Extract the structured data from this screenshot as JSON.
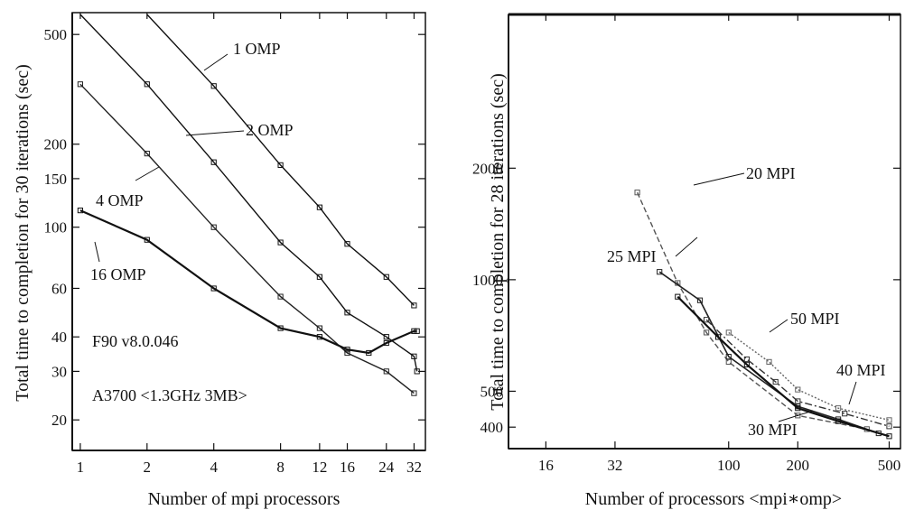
{
  "chart_data": [
    {
      "type": "line",
      "xlabel": "Number of mpi processors",
      "ylabel": "Total time to completion for 30 iterations (sec)",
      "xscale": "log",
      "yscale": "log",
      "xlim": [
        0.92,
        36
      ],
      "ylim": [
        15.5,
        600
      ],
      "x_ticks": [
        1,
        2,
        4,
        8,
        12,
        16,
        24,
        32
      ],
      "y_ticks": [
        20,
        30,
        40,
        60,
        100,
        150,
        200,
        500
      ],
      "grid": false,
      "annotations": [
        "F90 v8.0.046",
        "A3700 <1.3GHz 3MB>"
      ],
      "series": [
        {
          "name": "1 OMP",
          "x": [
            2,
            4,
            8,
            12,
            16,
            24,
            32
          ],
          "y": [
            640,
            325,
            168,
            118,
            87,
            66,
            52
          ]
        },
        {
          "name": "2 OMP",
          "x": [
            1,
            2,
            4,
            8,
            12,
            16,
            24,
            32,
            33
          ],
          "y": [
            640,
            330,
            172,
            88,
            66,
            49,
            40,
            34,
            30
          ]
        },
        {
          "name": "4 OMP",
          "x": [
            1,
            2,
            4,
            8,
            12,
            16,
            24,
            32
          ],
          "y": [
            330,
            185,
            100,
            56,
            43,
            35,
            30,
            25
          ]
        },
        {
          "name": "16 OMP",
          "x": [
            1,
            2,
            4,
            8,
            12,
            16,
            20,
            24,
            32,
            33
          ],
          "y": [
            115,
            90,
            60,
            43,
            40,
            36,
            35,
            38,
            42,
            42
          ]
        }
      ]
    },
    {
      "type": "line",
      "xlabel": "Number of  processors <mpi∗omp>",
      "ylabel": "Total time to completion for 28 iterations (sec)",
      "xscale": "log",
      "yscale": "log",
      "xlim": [
        11,
        560
      ],
      "ylim": [
        350,
        5200
      ],
      "x_ticks": [
        16,
        32,
        100,
        200,
        500
      ],
      "y_ticks": [
        400,
        500,
        1000,
        2000
      ],
      "grid": false,
      "series": [
        {
          "name": "20 MPI",
          "x": [
            40,
            60,
            80,
            100,
            200,
            400
          ],
          "y": [
            1720,
            980,
            720,
            600,
            430,
            395
          ]
        },
        {
          "name": "25 MPI",
          "x": [
            50,
            75,
            100,
            200,
            300,
            450
          ],
          "y": [
            1050,
            880,
            620,
            455,
            420,
            385
          ]
        },
        {
          "name": "30 MPI",
          "x": [
            60,
            90,
            120,
            200,
            300,
            500
          ],
          "y": [
            900,
            700,
            590,
            450,
            415,
            378
          ]
        },
        {
          "name": "40 MPI",
          "x": [
            80,
            120,
            160,
            200,
            320,
            500
          ],
          "y": [
            780,
            610,
            530,
            470,
            435,
            402
          ]
        },
        {
          "name": "50 MPI",
          "x": [
            100,
            150,
            200,
            300,
            500
          ],
          "y": [
            720,
            600,
            505,
            450,
            418
          ]
        }
      ]
    }
  ]
}
